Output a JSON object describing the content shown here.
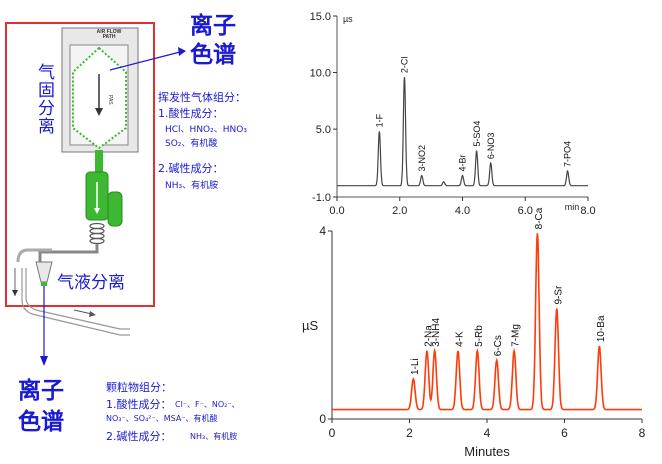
{
  "colors": {
    "frame_red": "#e03030",
    "title_blue": "#1a1ad0",
    "trace_black": "#444444",
    "trace_red": "#ff3b0a",
    "device_green": "#3cb832"
  },
  "diagram": {
    "device_tag": "AIR FLOW PATH",
    "side_tag": "PAS",
    "label_gas_solid": [
      "气",
      "固",
      "分",
      "离"
    ],
    "label_gas_liquid": "气液分离"
  },
  "ic_top": {
    "title_lines": [
      "离子",
      "色谱"
    ],
    "group_title": "挥发性气体组分：",
    "acid_title": "1.酸性成分：",
    "acid_line1": "HCl、HNO₂、HNO₃",
    "acid_line2": "SO₂、有机酸",
    "base_title": "2.碱性成分：",
    "base_line1": "NH₃、有机胺"
  },
  "ic_bottom": {
    "title_lines": [
      "离子",
      "色谱"
    ],
    "group_title": "颗粒物组分：",
    "acid_title": "1.酸性成分：",
    "acid_line1": "Cl⁻、F⁻、NO₂⁻、",
    "acid_line2": "NO₃⁻、SO₄²⁻、MSA⁻、有机酸",
    "base_title": "2.碱性成分：",
    "base_line1": "NH₃、有机胺"
  },
  "chart_data": [
    {
      "type": "line",
      "title": "",
      "ylabel": "µs",
      "xlabel": "min",
      "xlim": [
        0,
        8
      ],
      "ylim": [
        -1,
        15
      ],
      "x_ticks": [
        "0.0",
        "2.0",
        "4.0",
        "6.0",
        "8.0"
      ],
      "y_ticks": [
        "-1.0",
        "5.0",
        "10.0",
        "15.0"
      ],
      "baseline": 0.0,
      "peaks": [
        {
          "label": "1-F",
          "x": 1.35,
          "y": 4.8
        },
        {
          "label": "2-Cl",
          "x": 2.15,
          "y": 9.6
        },
        {
          "label": "3-NO2",
          "x": 2.7,
          "y": 0.9
        },
        {
          "label": "",
          "x": 3.4,
          "y": 0.35
        },
        {
          "label": "4-Br",
          "x": 4.0,
          "y": 0.9
        },
        {
          "label": "5-SO4",
          "x": 4.45,
          "y": 3.1
        },
        {
          "label": "6-NO3",
          "x": 4.9,
          "y": 2.0
        },
        {
          "label": "7-PO4",
          "x": 7.35,
          "y": 1.3
        }
      ]
    },
    {
      "type": "line",
      "title": "",
      "ylabel": "µS",
      "xlabel": "Minutes",
      "xlim": [
        0,
        8
      ],
      "ylim": [
        0,
        4
      ],
      "x_ticks": [
        "0",
        "2",
        "4",
        "6",
        "8"
      ],
      "y_ticks": [
        "0",
        "4"
      ],
      "baseline": 0.2,
      "peaks": [
        {
          "label": "1-Li",
          "x": 2.1,
          "y": 0.85
        },
        {
          "label": "2-Na",
          "x": 2.45,
          "y": 1.45
        },
        {
          "label": "3-NH4",
          "x": 2.65,
          "y": 1.45
        },
        {
          "label": "4-K",
          "x": 3.25,
          "y": 1.45
        },
        {
          "label": "5-Rb",
          "x": 3.75,
          "y": 1.45
        },
        {
          "label": "6-Cs",
          "x": 4.25,
          "y": 1.25
        },
        {
          "label": "7-Mg",
          "x": 4.7,
          "y": 1.45
        },
        {
          "label": "8-Ca",
          "x": 5.3,
          "y": 3.95
        },
        {
          "label": "9-Sr",
          "x": 5.8,
          "y": 2.35
        },
        {
          "label": "10-Ba",
          "x": 6.9,
          "y": 1.55
        }
      ]
    }
  ]
}
